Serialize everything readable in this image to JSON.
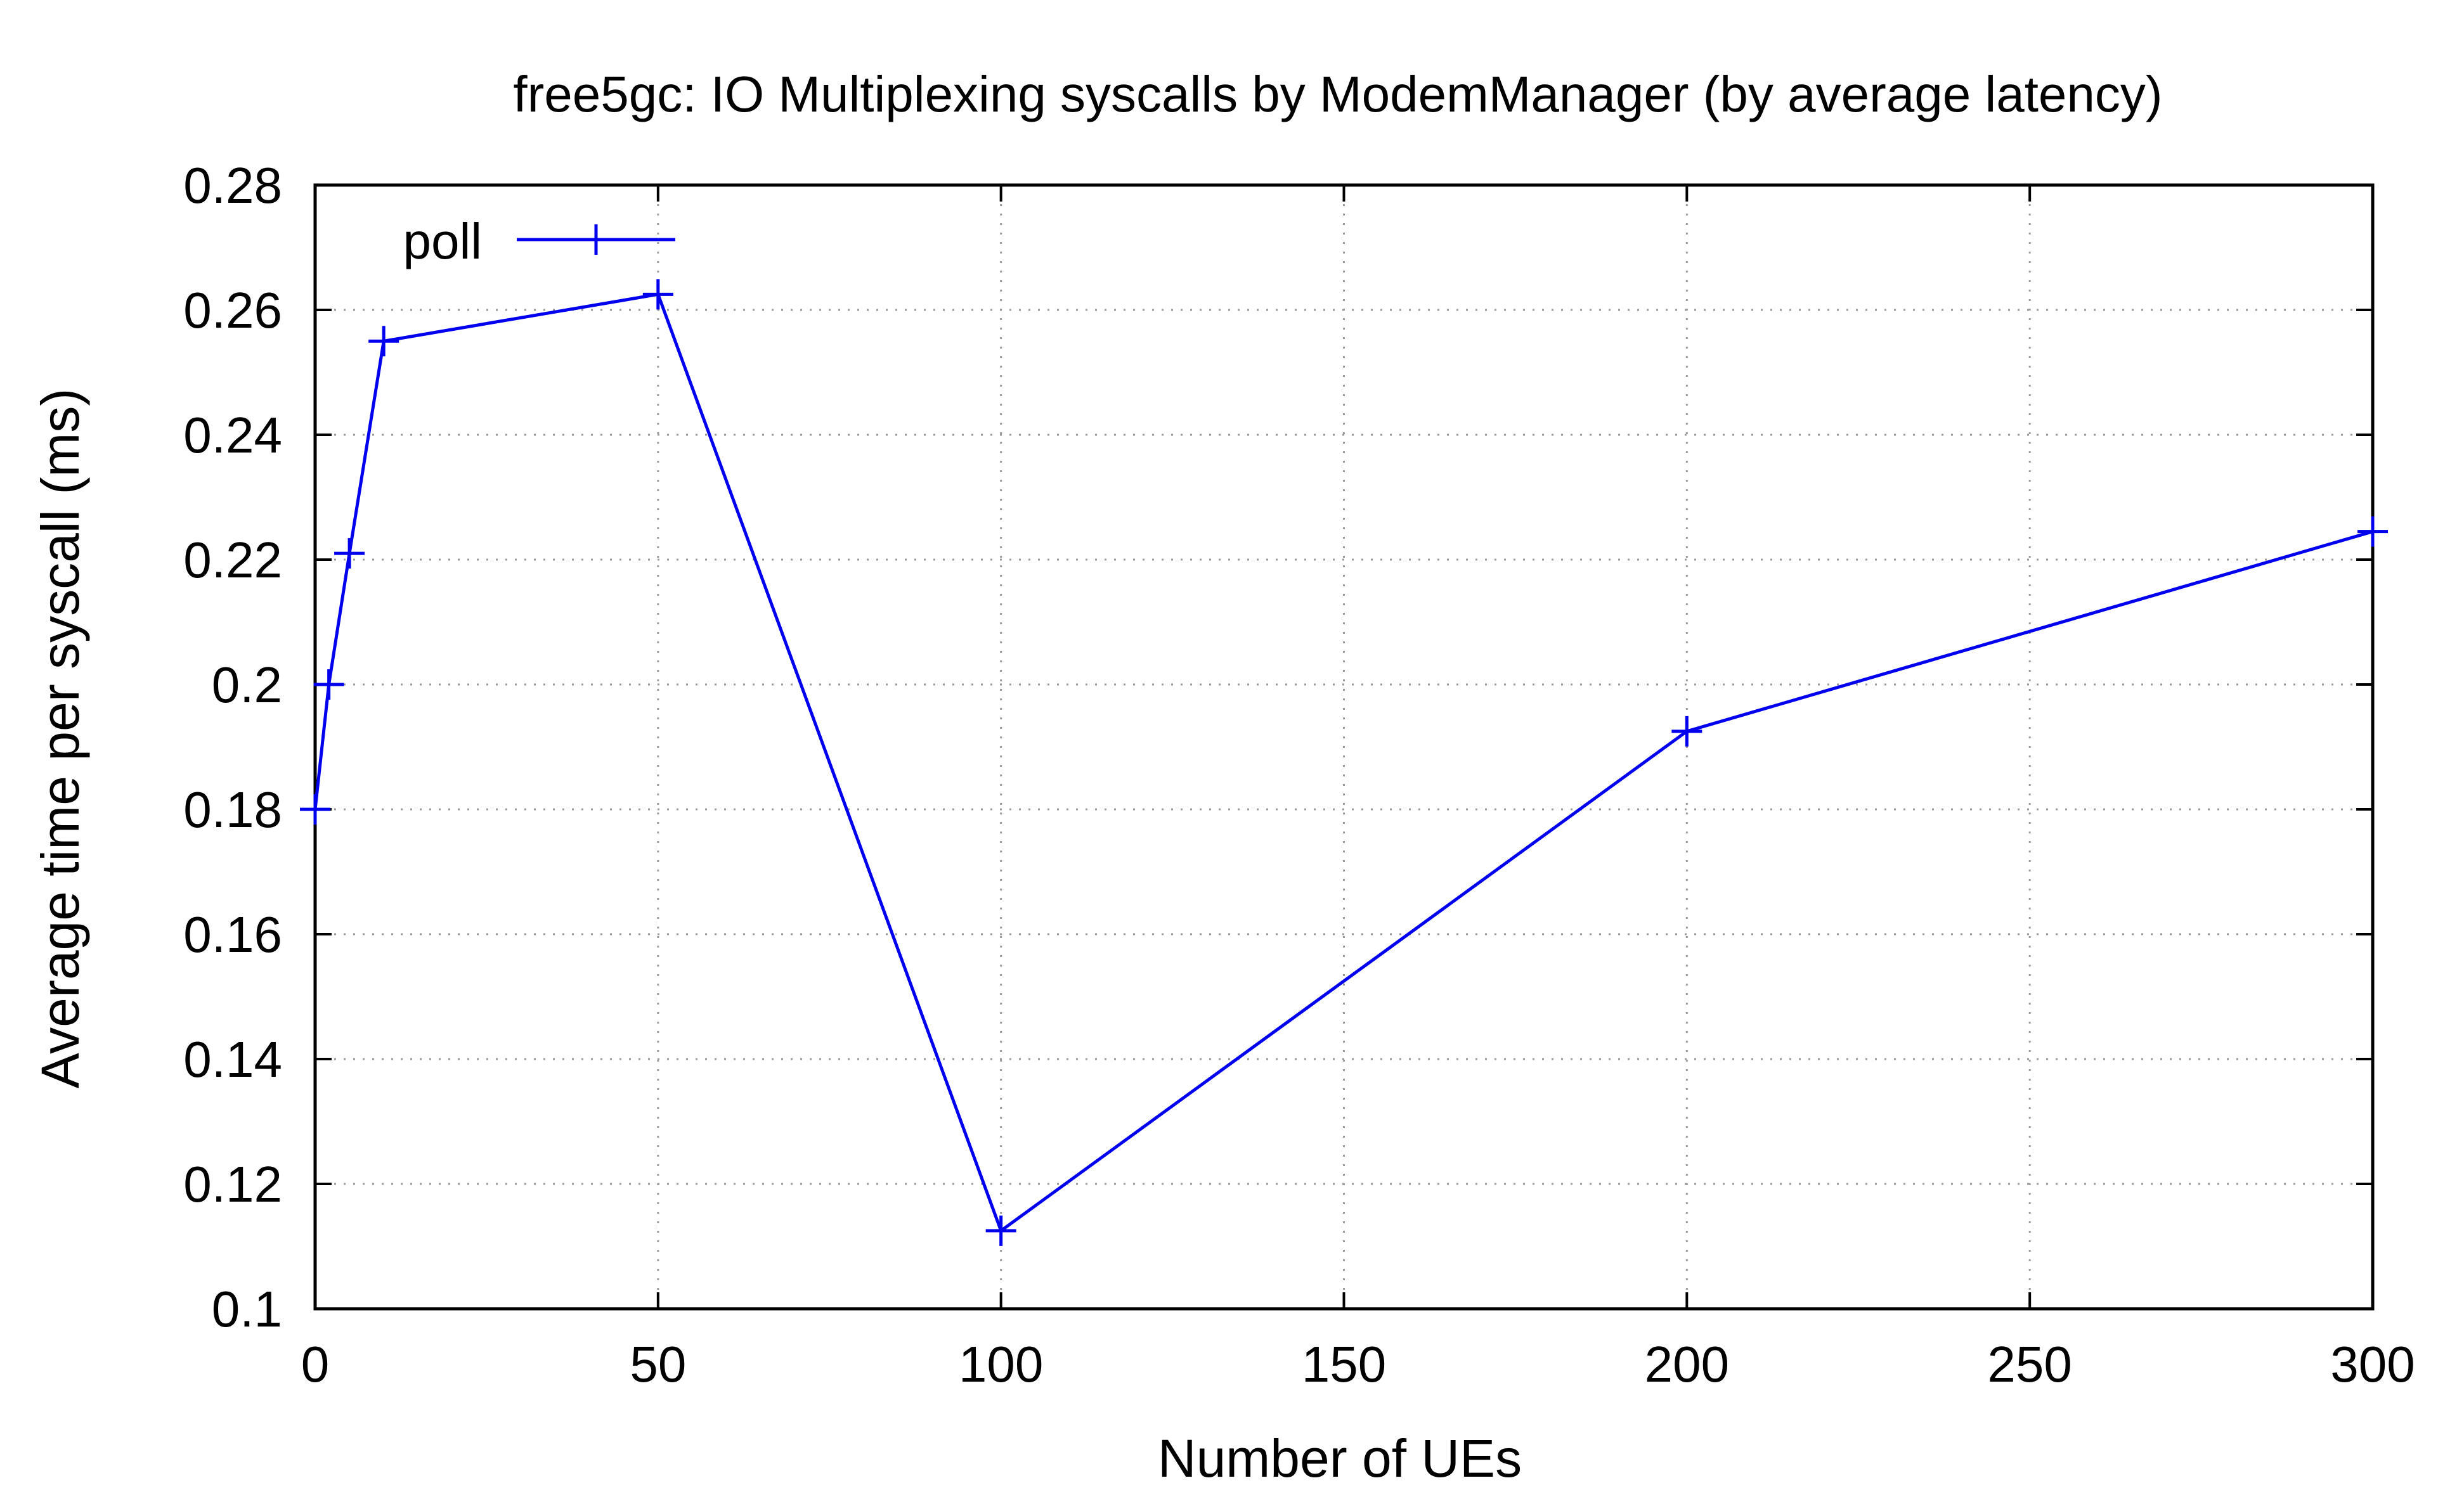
{
  "chart_data": {
    "type": "line",
    "title": "free5gc: IO Multiplexing syscalls by ModemManager (by average latency)",
    "xlabel": "Number of UEs",
    "ylabel": "Average time per syscall (ms)",
    "xlim": [
      0,
      300
    ],
    "ylim": [
      0.1,
      0.28
    ],
    "xticks": [
      0,
      50,
      100,
      150,
      200,
      250,
      300
    ],
    "xtick_labels": [
      "0",
      "50",
      "100",
      "150",
      "200",
      "250",
      "300"
    ],
    "yticks": [
      0.1,
      0.12,
      0.14,
      0.16,
      0.18,
      0.2,
      0.22,
      0.24,
      0.26,
      0.28
    ],
    "ytick_labels": [
      "0.1",
      "0.12",
      "0.14",
      "0.16",
      "0.18",
      "0.2",
      "0.22",
      "0.24",
      "0.26",
      "0.28"
    ],
    "grid": true,
    "legend_position": "top-left",
    "series": [
      {
        "name": "poll",
        "color": "#0000ee",
        "marker": "plus",
        "x": [
          0,
          2,
          5,
          10,
          50,
          100,
          200,
          300
        ],
        "y": [
          0.18,
          0.2,
          0.221,
          0.255,
          0.2625,
          0.1125,
          0.1925,
          0.2245
        ]
      }
    ]
  }
}
